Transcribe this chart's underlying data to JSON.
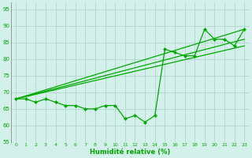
{
  "xlabel": "Humidité relative (%)",
  "bg_color": "#d4f0eb",
  "grid_color": "#b0d8cc",
  "line_color": "#00aa00",
  "marker_color": "#00aa00",
  "xlim": [
    -0.5,
    23.5
  ],
  "ylim": [
    55,
    97
  ],
  "yticks": [
    55,
    60,
    65,
    70,
    75,
    80,
    85,
    90,
    95
  ],
  "xticks": [
    0,
    1,
    2,
    3,
    4,
    5,
    6,
    7,
    8,
    9,
    10,
    11,
    12,
    13,
    14,
    15,
    16,
    17,
    18,
    19,
    20,
    21,
    22,
    23
  ],
  "series_main": [
    68,
    68,
    67,
    68,
    67,
    66,
    66,
    65,
    65,
    66,
    66,
    62,
    63,
    61,
    63,
    83,
    82,
    81,
    81,
    89,
    86,
    86,
    84,
    89
  ],
  "line1_x": [
    0,
    23
  ],
  "line1_y": [
    68,
    89
  ],
  "line2_x": [
    0,
    23
  ],
  "line2_y": [
    68,
    86
  ],
  "line3_x": [
    0,
    23
  ],
  "line3_y": [
    68,
    84
  ]
}
